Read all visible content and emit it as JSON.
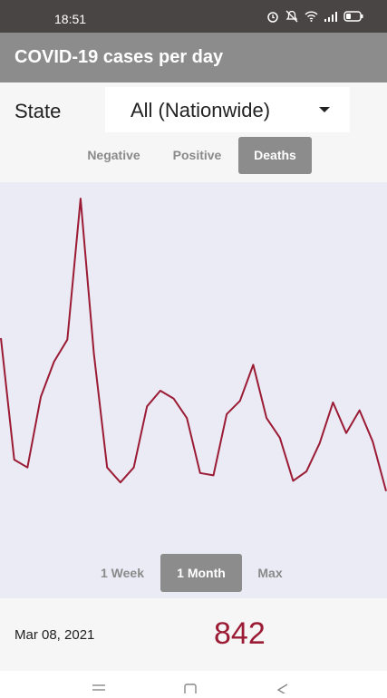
{
  "status_bar": {
    "time": "18:51",
    "icons": [
      "alarm-icon",
      "mute-icon",
      "wifi-icon",
      "signal-icon",
      "battery-icon"
    ]
  },
  "app_bar": {
    "title": "COVID-19 cases per day"
  },
  "state": {
    "label": "State",
    "selected": "All (Nationwide)"
  },
  "type_tabs": [
    {
      "label": "Negative",
      "active": false
    },
    {
      "label": "Positive",
      "active": false
    },
    {
      "label": "Deaths",
      "active": true
    }
  ],
  "range_tabs": [
    {
      "label": "1 Week",
      "active": false
    },
    {
      "label": "1 Month",
      "active": true
    },
    {
      "label": "Max",
      "active": false
    }
  ],
  "chart_data": {
    "type": "line",
    "line_color": "#9b1b34",
    "background": "#eaebf5",
    "series": [
      {
        "values": [
          3000,
          1450,
          1350,
          2250,
          2700,
          2980,
          4780,
          2800,
          1350,
          1160,
          1350,
          2130,
          2330,
          2230,
          1980,
          1280,
          1250,
          2030,
          2200,
          2660,
          1980,
          1730,
          1180,
          1300,
          1660,
          2180,
          1790,
          2080,
          1680,
          1050
        ]
      }
    ]
  },
  "footer": {
    "date": "Mar 08, 2021",
    "value": "842"
  },
  "nav": {
    "buttons": [
      "menu-icon",
      "home-icon",
      "back-icon"
    ]
  },
  "colors": {
    "accent": "#9b1b34",
    "bar": "#8c8c8c",
    "status": "#4a4545"
  }
}
